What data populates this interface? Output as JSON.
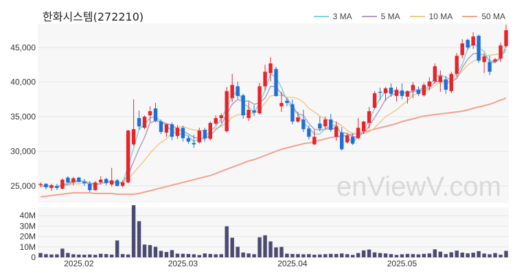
{
  "title": "한화시스템(272210)",
  "watermark": "enViewV.com",
  "legend": [
    {
      "label": "3 MA",
      "color": "#7fd3d6"
    },
    {
      "label": "5 MA",
      "color": "#b39dc3"
    },
    {
      "label": "10 MA",
      "color": "#f0c98e"
    },
    {
      "label": "50 MA",
      "color": "#f4a08e"
    }
  ],
  "colors": {
    "up": "#e8242b",
    "down": "#1e6fd8",
    "volume": "#4b4b72",
    "background": "#ffffff",
    "plot_bg": "#f7f7f7"
  },
  "chart_data": {
    "type": "candlestick",
    "price_axis": {
      "ticks": [
        25000,
        30000,
        35000,
        40000,
        45000
      ],
      "tick_labels": [
        "25,000",
        "30,000",
        "35,000",
        "40,000",
        "45,000"
      ],
      "range": [
        22500,
        48500
      ]
    },
    "volume_axis": {
      "ticks": [
        0,
        10,
        20,
        30,
        40
      ],
      "tick_labels": [
        "0",
        "10M",
        "20M",
        "30M",
        "40M"
      ],
      "range": [
        0,
        48
      ],
      "unit": "M"
    },
    "x_tick_labels": [
      {
        "label": "2025.02",
        "index": 7
      },
      {
        "label": "2025.03",
        "index": 26
      },
      {
        "label": "2025.04",
        "index": 46
      },
      {
        "label": "2025.05",
        "index": 66
      }
    ],
    "candles": [
      [
        25200,
        25500,
        24800,
        25300
      ],
      [
        25300,
        25400,
        24500,
        24800
      ],
      [
        24700,
        25300,
        24300,
        25100
      ],
      [
        25000,
        25300,
        24400,
        24700
      ],
      [
        24600,
        26100,
        24500,
        25900
      ],
      [
        26200,
        26400,
        25400,
        25500
      ],
      [
        25500,
        26300,
        25100,
        26100
      ],
      [
        26200,
        26300,
        25500,
        25600
      ],
      [
        25600,
        26000,
        25000,
        25400
      ],
      [
        25300,
        25700,
        24100,
        24400
      ],
      [
        24400,
        25700,
        24300,
        25500
      ],
      [
        25500,
        26400,
        25200,
        25900
      ],
      [
        26000,
        26200,
        25100,
        25400
      ],
      [
        25200,
        27600,
        24900,
        25800
      ],
      [
        25800,
        26000,
        24900,
        25000
      ],
      [
        25000,
        25800,
        24800,
        25500
      ],
      [
        25500,
        33100,
        25400,
        33000
      ],
      [
        31000,
        37500,
        30800,
        33200
      ],
      [
        34800,
        35900,
        33100,
        33600
      ],
      [
        33400,
        35200,
        33200,
        35000
      ],
      [
        35200,
        36500,
        34200,
        35800
      ],
      [
        36200,
        37000,
        34200,
        34400
      ],
      [
        34300,
        34600,
        32500,
        32800
      ],
      [
        32700,
        34000,
        32100,
        33900
      ],
      [
        33900,
        34200,
        31600,
        32100
      ],
      [
        32200,
        33800,
        31800,
        33400
      ],
      [
        33400,
        33700,
        31400,
        31900
      ],
      [
        31900,
        32300,
        31100,
        31400
      ],
      [
        31200,
        32400,
        30500,
        31000
      ],
      [
        31300,
        33400,
        31100,
        33000
      ],
      [
        33100,
        33400,
        31400,
        31900
      ],
      [
        31800,
        34300,
        31600,
        34100
      ],
      [
        34000,
        35200,
        33800,
        34800
      ],
      [
        34800,
        35500,
        34100,
        35200
      ],
      [
        32900,
        39300,
        32700,
        38700
      ],
      [
        37700,
        41200,
        37100,
        39600
      ],
      [
        39400,
        40100,
        37600,
        38000
      ],
      [
        38100,
        38300,
        34700,
        35200
      ],
      [
        34800,
        37200,
        34400,
        36000
      ],
      [
        35900,
        36700,
        35100,
        35600
      ],
      [
        35500,
        39900,
        35300,
        39400
      ],
      [
        39400,
        42500,
        38800,
        41500
      ],
      [
        41300,
        43600,
        40100,
        42700
      ],
      [
        41900,
        42200,
        37900,
        38000
      ],
      [
        36500,
        38600,
        35700,
        37000
      ],
      [
        37300,
        37600,
        36500,
        37000
      ],
      [
        36800,
        37500,
        33900,
        34300
      ],
      [
        34300,
        35700,
        34100,
        34900
      ],
      [
        34600,
        36000,
        32800,
        33200
      ],
      [
        33300,
        33700,
        31700,
        32100
      ],
      [
        31000,
        33100,
        30900,
        32100
      ],
      [
        34000,
        35000,
        32900,
        33300
      ],
      [
        33600,
        35000,
        33200,
        34600
      ],
      [
        34600,
        35400,
        32800,
        33100
      ],
      [
        32100,
        34300,
        31500,
        33600
      ],
      [
        32700,
        33500,
        30100,
        30300
      ],
      [
        31300,
        32600,
        31100,
        32300
      ],
      [
        32100,
        32600,
        30900,
        31100
      ],
      [
        31900,
        34800,
        31700,
        33400
      ],
      [
        32900,
        34400,
        32500,
        34300
      ],
      [
        34100,
        36400,
        33300,
        35800
      ],
      [
        36300,
        38700,
        36100,
        38400
      ],
      [
        38600,
        39200,
        37400,
        38500
      ],
      [
        38400,
        39300,
        37300,
        39100
      ],
      [
        39200,
        39800,
        37900,
        38300
      ],
      [
        38000,
        39300,
        37200,
        38900
      ],
      [
        38800,
        39800,
        37500,
        38000
      ],
      [
        37900,
        38800,
        36900,
        38700
      ],
      [
        38800,
        40000,
        37700,
        39600
      ],
      [
        38900,
        39400,
        38000,
        38300
      ],
      [
        38100,
        39900,
        37900,
        39600
      ],
      [
        39400,
        40700,
        38800,
        40100
      ],
      [
        40100,
        42700,
        39800,
        42300
      ],
      [
        40000,
        41700,
        38600,
        40900
      ],
      [
        40400,
        40900,
        38300,
        38900
      ],
      [
        38700,
        41500,
        38400,
        41200
      ],
      [
        41200,
        44200,
        40800,
        43800
      ],
      [
        43900,
        46200,
        43400,
        45600
      ],
      [
        46100,
        46300,
        44700,
        45000
      ],
      [
        45300,
        47200,
        44800,
        46600
      ],
      [
        46700,
        46900,
        42800,
        43100
      ],
      [
        42900,
        44200,
        41300,
        43700
      ],
      [
        42900,
        43800,
        41000,
        41500
      ],
      [
        43000,
        43500,
        42800,
        43300
      ],
      [
        43400,
        45700,
        42900,
        45300
      ],
      [
        45200,
        48300,
        45000,
        47500
      ]
    ],
    "ma3": [
      25100,
      25000,
      24900,
      24900,
      25200,
      25400,
      25800,
      25700,
      25700,
      25100,
      25100,
      25300,
      25600,
      25700,
      25400,
      25400,
      27800,
      30500,
      33200,
      33900,
      34800,
      35000,
      34300,
      33700,
      32900,
      32500,
      32500,
      32200,
      31400,
      31800,
      32000,
      33000,
      33600,
      34700,
      36300,
      37900,
      38800,
      36900,
      36400,
      35600,
      37000,
      38800,
      41200,
      40700,
      39200,
      37300,
      36100,
      35400,
      34100,
      33400,
      32500,
      32500,
      33300,
      33700,
      33800,
      32300,
      32100,
      31200,
      32300,
      32900,
      34500,
      36200,
      37600,
      38700,
      38600,
      38800,
      38400,
      38500,
      38800,
      38900,
      39200,
      39300,
      40700,
      41100,
      40700,
      40300,
      41300,
      42600,
      44800,
      45700,
      44900,
      44500,
      42800,
      42800,
      43400,
      45400
    ],
    "ma5": [
      25000,
      25000,
      24900,
      24900,
      25100,
      25200,
      25600,
      25600,
      25700,
      25400,
      25300,
      25300,
      25600,
      25600,
      25400,
      25500,
      26600,
      28500,
      30400,
      32000,
      34100,
      34400,
      34300,
      34000,
      33800,
      33200,
      32900,
      32500,
      32000,
      31900,
      31800,
      32300,
      33100,
      33800,
      35400,
      36800,
      37500,
      37200,
      37300,
      36800,
      37000,
      37700,
      39400,
      39300,
      38300,
      37700,
      36600,
      35400,
      35200,
      34000,
      33200,
      33100,
      33200,
      33300,
      33300,
      32700,
      32600,
      32100,
      32100,
      32700,
      33600,
      34900,
      36100,
      37500,
      38100,
      38400,
      38500,
      38500,
      38600,
      38700,
      38900,
      39100,
      40000,
      40200,
      40100,
      40100,
      40500,
      42100,
      43300,
      44100,
      44100,
      43900,
      43100,
      42900,
      43600,
      44800
    ],
    "ma10": [
      24900,
      24900,
      24900,
      24900,
      25000,
      25100,
      25300,
      25300,
      25400,
      25300,
      25300,
      25300,
      25500,
      25500,
      25500,
      25400,
      26000,
      26900,
      27800,
      28700,
      29700,
      30600,
      31300,
      31800,
      32700,
      33500,
      33600,
      33300,
      33100,
      33000,
      33000,
      33100,
      33300,
      33600,
      34100,
      34900,
      35300,
      35300,
      35500,
      35500,
      36000,
      37000,
      38000,
      38100,
      38100,
      37800,
      37800,
      37600,
      37100,
      36200,
      35700,
      35100,
      34700,
      34400,
      34200,
      33700,
      33000,
      32600,
      32600,
      32600,
      32800,
      33400,
      34200,
      35000,
      35500,
      36000,
      36700,
      37300,
      38100,
      38400,
      38700,
      38900,
      39500,
      40000,
      39700,
      40000,
      40800,
      41600,
      42500,
      43000,
      43400,
      43700,
      43900,
      44000,
      44100,
      44300
    ],
    "ma50": [
      23400,
      23500,
      23600,
      23700,
      23800,
      23900,
      24000,
      24000,
      24000,
      24000,
      23900,
      23900,
      23900,
      23900,
      23800,
      23800,
      23800,
      23800,
      23900,
      24100,
      24300,
      24500,
      24700,
      24900,
      25100,
      25300,
      25500,
      25700,
      25900,
      26100,
      26300,
      26500,
      26800,
      27100,
      27400,
      27700,
      28000,
      28300,
      28600,
      28800,
      29100,
      29400,
      29700,
      30000,
      30300,
      30500,
      30700,
      30900,
      31100,
      31200,
      31400,
      31600,
      31800,
      32000,
      32100,
      32200,
      32300,
      32500,
      32600,
      32800,
      33000,
      33200,
      33400,
      33600,
      33800,
      34000,
      34300,
      34500,
      34700,
      34900,
      35100,
      35200,
      35300,
      35400,
      35500,
      35600,
      35700,
      35800,
      36000,
      36200,
      36400,
      36600,
      36800,
      37100,
      37400,
      37700
    ],
    "volume": [
      4.2,
      3.1,
      2.8,
      2.9,
      8.4,
      4.3,
      3.0,
      2.7,
      2.6,
      2.8,
      2.5,
      3.5,
      3.2,
      2.7,
      16.2,
      3.2,
      2.8,
      50.0,
      34.7,
      12.3,
      11.8,
      10.2,
      6.3,
      5.2,
      7.0,
      3.6,
      3.5,
      3.3,
      3.0,
      2.3,
      3.8,
      3.3,
      3.0,
      3.1,
      29.8,
      18.9,
      10.2,
      4.7,
      3.8,
      3.1,
      19.3,
      21.2,
      15.3,
      9.6,
      10.1,
      3.6,
      3.3,
      3.2,
      3.0,
      3.2,
      2.6,
      2.8,
      3.1,
      3.4,
      3.3,
      3.8,
      3.1,
      2.4,
      4.2,
      6.7,
      7.5,
      4.8,
      4.2,
      3.8,
      3.2,
      2.4,
      3.0,
      3.4,
      3.2,
      2.9,
      3.4,
      3.8,
      7.7,
      5.5,
      3.2,
      4.9,
      6.5,
      4.6,
      3.9,
      4.5,
      6.0,
      3.7,
      3.0,
      4.2,
      2.6,
      6.3
    ]
  }
}
